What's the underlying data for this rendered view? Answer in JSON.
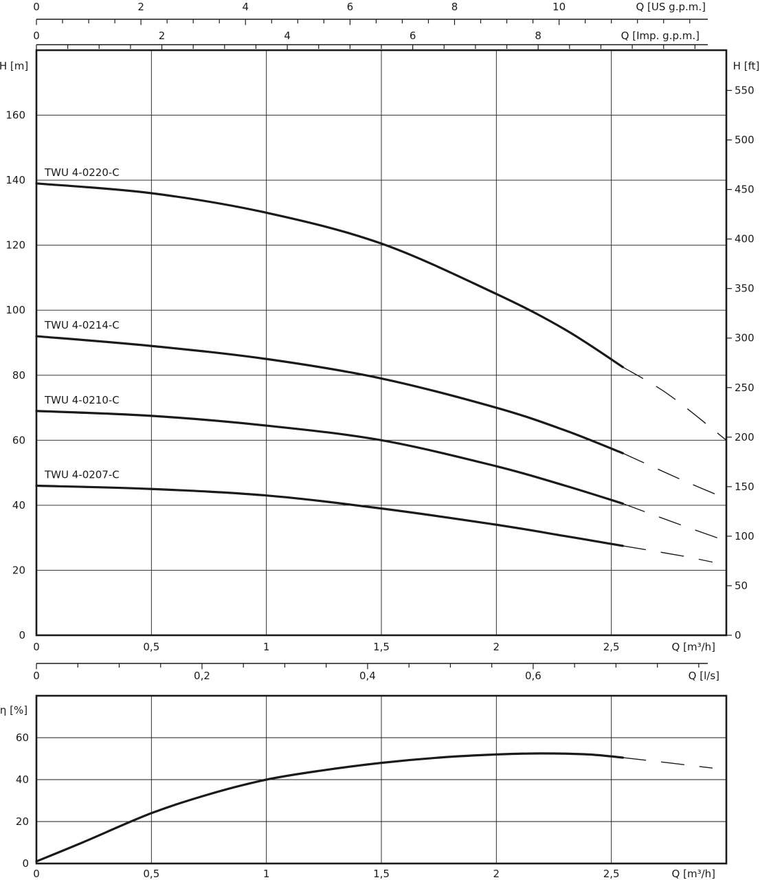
{
  "chart_data": [
    {
      "type": "line",
      "title": "",
      "xlabel": "Q [m³/h]",
      "ylabel": "H [m]",
      "y2label": "H [ft]",
      "xlim": [
        0,
        3.0
      ],
      "ylim": [
        0,
        180
      ],
      "y2lim": [
        0,
        590.6
      ],
      "grid": true,
      "x_ticks": [
        {
          "value": 0,
          "label": "0"
        },
        {
          "value": 0.5,
          "label": "0,5"
        },
        {
          "value": 1,
          "label": "1"
        },
        {
          "value": 1.5,
          "label": "1,5"
        },
        {
          "value": 2,
          "label": "2"
        },
        {
          "value": 2.5,
          "label": "2,5"
        }
      ],
      "y_ticks": [
        {
          "value": 0,
          "label": "0"
        },
        {
          "value": 20,
          "label": "20"
        },
        {
          "value": 40,
          "label": "40"
        },
        {
          "value": 60,
          "label": "60"
        },
        {
          "value": 80,
          "label": "80"
        },
        {
          "value": 100,
          "label": "100"
        },
        {
          "value": 120,
          "label": "120"
        },
        {
          "value": 140,
          "label": "140"
        },
        {
          "value": 160,
          "label": "160"
        }
      ],
      "y2_ticks": [
        {
          "value": 0,
          "label": "0"
        },
        {
          "value": 50,
          "label": "50"
        },
        {
          "value": 100,
          "label": "100"
        },
        {
          "value": 150,
          "label": "150"
        },
        {
          "value": 200,
          "label": "200"
        },
        {
          "value": 250,
          "label": "250"
        },
        {
          "value": 300,
          "label": "300"
        },
        {
          "value": 350,
          "label": "350"
        },
        {
          "value": 400,
          "label": "400"
        },
        {
          "value": 450,
          "label": "450"
        },
        {
          "value": 500,
          "label": "500"
        },
        {
          "value": 550,
          "label": "550"
        }
      ],
      "top_axes": [
        {
          "label": "Q [US g.p.m.]",
          "max": 13.2,
          "labeled_ticks": [
            {
              "value": 0,
              "label": "0"
            },
            {
              "value": 2,
              "label": "2"
            },
            {
              "value": 4,
              "label": "4"
            },
            {
              "value": 6,
              "label": "6"
            },
            {
              "value": 8,
              "label": "8"
            },
            {
              "value": 10,
              "label": "10"
            }
          ],
          "minor_step": 0.5
        },
        {
          "label": "Q [Imp. g.p.m.]",
          "max": 11.0,
          "labeled_ticks": [
            {
              "value": 0,
              "label": "0"
            },
            {
              "value": 2,
              "label": "2"
            },
            {
              "value": 4,
              "label": "4"
            },
            {
              "value": 6,
              "label": "6"
            },
            {
              "value": 8,
              "label": "8"
            }
          ],
          "minor_step": 0.5
        }
      ],
      "bottom_axis2": {
        "label": "Q [l/s]",
        "max": 0.8333,
        "labeled_ticks": [
          {
            "value": 0,
            "label": "0"
          },
          {
            "value": 0.2,
            "label": "0,2"
          },
          {
            "value": 0.4,
            "label": "0,4"
          },
          {
            "value": 0.6,
            "label": "0,6"
          }
        ],
        "minor_step": 0.05
      },
      "series": [
        {
          "name": "TWU 4-0220-C",
          "points": [
            [
              0,
              139
            ],
            [
              0.5,
              136
            ],
            [
              1,
              130
            ],
            [
              1.5,
              120.5
            ],
            [
              2,
              105
            ],
            [
              2.3,
              94
            ],
            [
              2.55,
              82.5
            ]
          ],
          "extrapolated": [
            [
              2.55,
              82.5
            ],
            [
              2.75,
              74
            ],
            [
              3.0,
              60
            ]
          ]
        },
        {
          "name": "TWU 4-0214-C",
          "points": [
            [
              0,
              92
            ],
            [
              0.5,
              89
            ],
            [
              1,
              85
            ],
            [
              1.5,
              79
            ],
            [
              2,
              70
            ],
            [
              2.3,
              63
            ],
            [
              2.55,
              56
            ]
          ],
          "extrapolated": [
            [
              2.55,
              56
            ],
            [
              2.8,
              48
            ],
            [
              3.0,
              42
            ]
          ]
        },
        {
          "name": "TWU 4-0210-C",
          "points": [
            [
              0,
              69
            ],
            [
              0.5,
              67.5
            ],
            [
              1,
              64.5
            ],
            [
              1.5,
              60
            ],
            [
              2,
              52
            ],
            [
              2.3,
              46
            ],
            [
              2.55,
              40.5
            ]
          ],
          "extrapolated": [
            [
              2.55,
              40.5
            ],
            [
              2.8,
              34
            ],
            [
              3.0,
              29
            ]
          ]
        },
        {
          "name": "TWU 4-0207-C",
          "points": [
            [
              0,
              46
            ],
            [
              0.5,
              45
            ],
            [
              1,
              43
            ],
            [
              1.5,
              39
            ],
            [
              2,
              34
            ],
            [
              2.3,
              30.5
            ],
            [
              2.55,
              27.5
            ]
          ],
          "extrapolated": [
            [
              2.55,
              27.5
            ],
            [
              2.8,
              24.5
            ],
            [
              2.94,
              22.5
            ]
          ]
        }
      ]
    },
    {
      "type": "line",
      "title": "",
      "xlabel": "Q [m³/h]",
      "ylabel": "η [%]",
      "xlim": [
        0,
        3.0
      ],
      "ylim": [
        0,
        80
      ],
      "grid": true,
      "x_ticks": [
        {
          "value": 0,
          "label": "0"
        },
        {
          "value": 0.5,
          "label": "0,5"
        },
        {
          "value": 1,
          "label": "1"
        },
        {
          "value": 1.5,
          "label": "1,5"
        },
        {
          "value": 2,
          "label": "2"
        },
        {
          "value": 2.5,
          "label": "2,5"
        }
      ],
      "y_ticks": [
        {
          "value": 0,
          "label": "0"
        },
        {
          "value": 20,
          "label": "20"
        },
        {
          "value": 40,
          "label": "40"
        },
        {
          "value": 60,
          "label": "60"
        }
      ],
      "series": [
        {
          "name": "",
          "points": [
            [
              0,
              1
            ],
            [
              0.2,
              10
            ],
            [
              0.5,
              24
            ],
            [
              0.75,
              33
            ],
            [
              1,
              40
            ],
            [
              1.25,
              44.5
            ],
            [
              1.5,
              48
            ],
            [
              1.75,
              50.5
            ],
            [
              2,
              52
            ],
            [
              2.2,
              52.5
            ],
            [
              2.4,
              52
            ],
            [
              2.55,
              50.5
            ]
          ],
          "extrapolated": [
            [
              2.55,
              50.5
            ],
            [
              2.75,
              48
            ],
            [
              2.94,
              45.5
            ]
          ]
        }
      ]
    }
  ]
}
